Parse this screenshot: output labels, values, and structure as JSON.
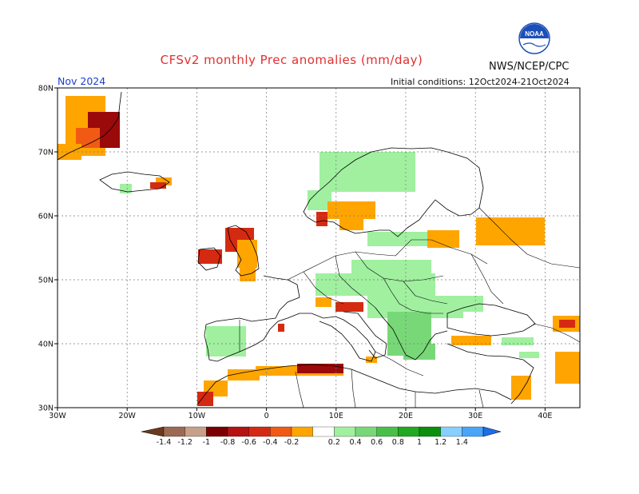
{
  "title": "CFSv2 monthly Prec anomalies (mm/day)",
  "agency": "NWS/NCEP/CPC",
  "valid_month": "Nov 2024",
  "initial_conditions": "Initial conditions: 12Oct2024-21Oct2024",
  "logo": {
    "text": "NOAA",
    "colors": [
      "#1d4fb8",
      "#ffffff"
    ]
  },
  "map": {
    "lon_range": [
      -30,
      45
    ],
    "lat_range": [
      30,
      80
    ],
    "lon_labels": [
      "30W",
      "20W",
      "10W",
      "0",
      "10E",
      "20E",
      "30E",
      "40E"
    ],
    "lat_labels": [
      "80N",
      "70N",
      "60N",
      "50N",
      "40N",
      "30N"
    ]
  },
  "colorbar": {
    "labels": [
      "-1.4",
      "-1.2",
      "-1",
      "-0.8",
      "-0.6",
      "-0.4",
      "-0.2",
      "0.2",
      "0.4",
      "0.6",
      "0.8",
      "1",
      "1.2",
      "1.4"
    ],
    "colors": [
      "#6b3a1c",
      "#9c6a52",
      "#c7a08a",
      "#7a0000",
      "#b51212",
      "#d42a12",
      "#f05a14",
      "#ffa500",
      "#ffffff",
      "#a0f0a0",
      "#78d878",
      "#48c048",
      "#22a822",
      "#0a900a",
      "#86cfff",
      "#4aa4f8",
      "#1e6ee8"
    ]
  },
  "anomaly_legend": {
    "orange": "#ffa500",
    "orange_red": "#f05a14",
    "red": "#d42a12",
    "dark_red": "#9a0a0a",
    "light_green": "#a0f0a0",
    "green": "#78d878",
    "blue": "#86cfff"
  },
  "anomaly_regions": [
    {
      "level": "orange",
      "region": "Greenland East Coast"
    },
    {
      "level": "dark_red",
      "region": "Greenland Southeast Coast"
    },
    {
      "level": "orange",
      "region": "Iceland East"
    },
    {
      "level": "light_green",
      "region": "Norway Coast"
    },
    {
      "level": "orange",
      "region": "Southern Norway"
    },
    {
      "level": "orange",
      "region": "Southern Sweden"
    },
    {
      "level": "red",
      "region": "Western Scotland"
    },
    {
      "level": "red",
      "region": "Western Ireland"
    },
    {
      "level": "orange",
      "region": "Western Russia"
    },
    {
      "level": "light_green",
      "region": "Central Europe"
    },
    {
      "level": "green",
      "region": "Balkans"
    },
    {
      "level": "green",
      "region": "Greece"
    },
    {
      "level": "red",
      "region": "Northern Italy"
    },
    {
      "level": "light_green",
      "region": "Iberia"
    },
    {
      "level": "dark_red",
      "region": "Algeria Coast"
    },
    {
      "level": "red",
      "region": "Morocco Coast"
    },
    {
      "level": "orange",
      "region": "Levant"
    },
    {
      "level": "orange",
      "region": "Eastern Black Sea"
    }
  ]
}
